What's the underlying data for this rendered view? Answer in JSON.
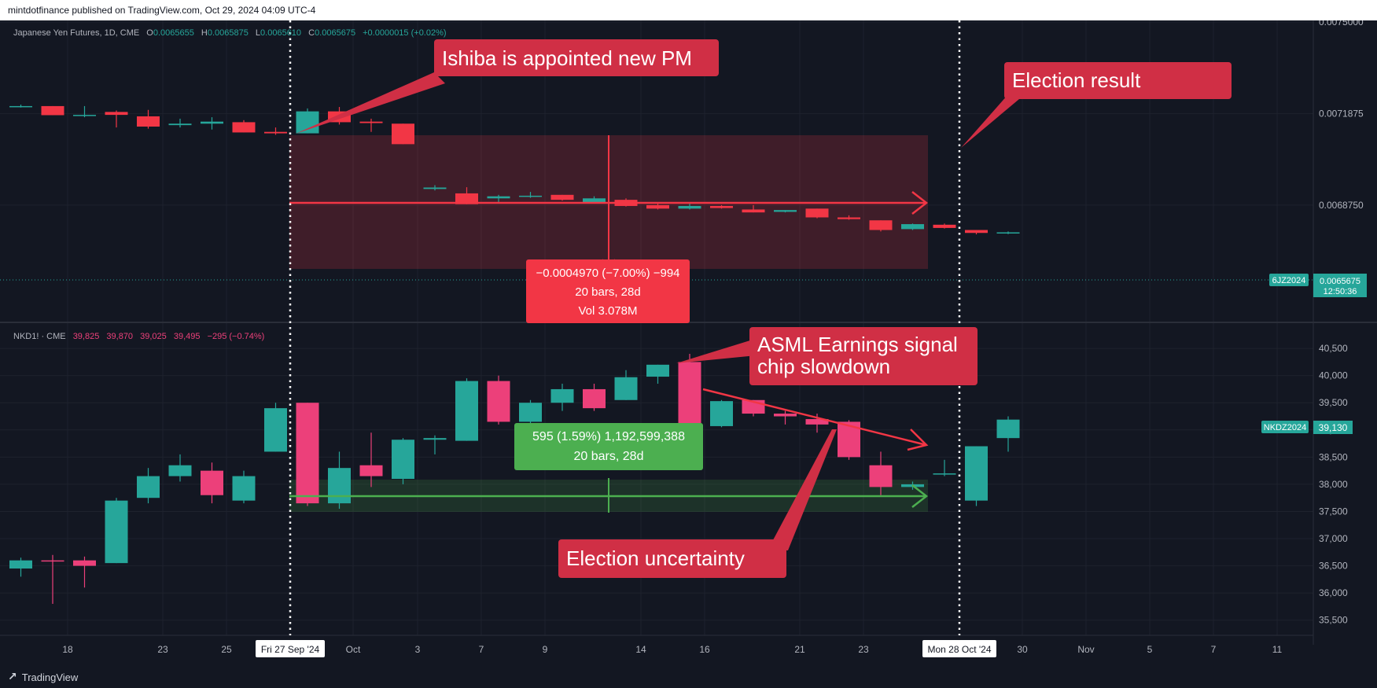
{
  "publisher_line": "mintdotfinance published on TradingView.com, Oct 29, 2024 04:09 UTC-4",
  "footer_logo_text": "TradingView",
  "colors": {
    "up": "#26a69a",
    "down_top": "#f23645",
    "down_bottom": "#ec407a",
    "bg": "#131722",
    "text": "#b2b5be"
  },
  "chart_data": [
    {
      "type": "candlestick",
      "title": "Japanese Yen Futures, 1D, CME",
      "ohlc_label": {
        "o_key": "O",
        "o": "0.0065655",
        "h_key": "H",
        "h": "0.0065875",
        "l_key": "L",
        "l": "0.0065610",
        "c_key": "C",
        "c": "0.0065675",
        "chg": "+0.0000015 (+0.02%)"
      },
      "y_ticks": [
        "0.0075000",
        "0.0071875",
        "0.0068750"
      ],
      "ylim": [
        0.00648,
        0.0075
      ],
      "symbol_badge": "6JZ2024",
      "last_price": "0.0065675",
      "countdown": "12:50:36",
      "last_value": 0.0065675,
      "candles": [
        {
          "o": 0.007213,
          "h": 0.007218,
          "l": 0.007208,
          "c": 0.007213
        },
        {
          "o": 0.007213,
          "h": 0.007213,
          "l": 0.007182,
          "c": 0.007182
        },
        {
          "o": 0.007183,
          "h": 0.007213,
          "l": 0.007175,
          "c": 0.007183
        },
        {
          "o": 0.007193,
          "h": 0.007198,
          "l": 0.00714,
          "c": 0.007183
        },
        {
          "o": 0.007178,
          "h": 0.0072,
          "l": 0.007136,
          "c": 0.007143
        },
        {
          "o": 0.007148,
          "h": 0.00717,
          "l": 0.00714,
          "c": 0.007153
        },
        {
          "o": 0.007153,
          "h": 0.007175,
          "l": 0.007133,
          "c": 0.00716
        },
        {
          "o": 0.007158,
          "h": 0.007165,
          "l": 0.007123,
          "c": 0.007123
        },
        {
          "o": 0.007125,
          "h": 0.00714,
          "l": 0.007115,
          "c": 0.00712
        },
        {
          "o": 0.00712,
          "h": 0.007205,
          "l": 0.00712,
          "c": 0.007195
        },
        {
          "o": 0.007195,
          "h": 0.00721,
          "l": 0.00715,
          "c": 0.007158
        },
        {
          "o": 0.00716,
          "h": 0.00717,
          "l": 0.007125,
          "c": 0.007155
        },
        {
          "o": 0.007153,
          "h": 0.007153,
          "l": 0.007083,
          "c": 0.007083
        },
        {
          "o": 0.00693,
          "h": 0.006943,
          "l": 0.006925,
          "c": 0.006935
        },
        {
          "o": 0.006915,
          "h": 0.006936,
          "l": 0.006878,
          "c": 0.006878
        },
        {
          "o": 0.006898,
          "h": 0.00691,
          "l": 0.00688,
          "c": 0.006905
        },
        {
          "o": 0.006905,
          "h": 0.00692,
          "l": 0.0069,
          "c": 0.006907
        },
        {
          "o": 0.00691,
          "h": 0.00691,
          "l": 0.00689,
          "c": 0.006893
        },
        {
          "o": 0.006885,
          "h": 0.006905,
          "l": 0.00688,
          "c": 0.006898
        },
        {
          "o": 0.006893,
          "h": 0.006898,
          "l": 0.00687,
          "c": 0.006872
        },
        {
          "o": 0.006875,
          "h": 0.00688,
          "l": 0.00686,
          "c": 0.006863
        },
        {
          "o": 0.006863,
          "h": 0.006885,
          "l": 0.00686,
          "c": 0.006872
        },
        {
          "o": 0.006872,
          "h": 0.006875,
          "l": 0.006863,
          "c": 0.006865
        },
        {
          "o": 0.00686,
          "h": 0.006875,
          "l": 0.00685,
          "c": 0.00685
        },
        {
          "o": 0.006852,
          "h": 0.006858,
          "l": 0.00685,
          "c": 0.006858
        },
        {
          "o": 0.006863,
          "h": 0.006863,
          "l": 0.00683,
          "c": 0.006833
        },
        {
          "o": 0.006833,
          "h": 0.00684,
          "l": 0.006825,
          "c": 0.006827
        },
        {
          "o": 0.006823,
          "h": 0.006823,
          "l": 0.006785,
          "c": 0.00679
        },
        {
          "o": 0.006793,
          "h": 0.006812,
          "l": 0.00679,
          "c": 0.00681
        },
        {
          "o": 0.006808,
          "h": 0.006812,
          "l": 0.006795,
          "c": 0.006797
        },
        {
          "o": 0.00679,
          "h": 0.00679,
          "l": 0.006775,
          "c": 0.00678
        },
        {
          "o": 0.006778,
          "h": 0.006785,
          "l": 0.006776,
          "c": 0.006782
        }
      ],
      "annotations": {
        "callout_1": "Ishiba is appointed new PM",
        "callout_2": "Election result",
        "measure_line1": "−0.0004970 (−7.00%) −994",
        "measure_line2": "20 bars, 28d",
        "measure_line3": "Vol 3.078M"
      }
    },
    {
      "type": "candlestick",
      "title": "NKD1! · CME",
      "ohlc_label": {
        "o": "39,825",
        "h": "39,870",
        "l": "39,025",
        "c": "39,495",
        "chg": "−295 (−0.74%)"
      },
      "y_ticks": [
        "40,500",
        "40,000",
        "39,500",
        "39,000",
        "38,500",
        "38,000",
        "37,500",
        "37,000",
        "36,500",
        "36,000",
        "35,500"
      ],
      "ylim": [
        35250,
        40950
      ],
      "symbol_badge": "NKDZ2024",
      "last_price": "39,130",
      "candles": [
        {
          "o": 36450,
          "h": 36650,
          "l": 36300,
          "c": 36600
        },
        {
          "o": 36600,
          "h": 36700,
          "l": 35800,
          "c": 36580
        },
        {
          "o": 36600,
          "h": 36670,
          "l": 36100,
          "c": 36500
        },
        {
          "o": 36550,
          "h": 37750,
          "l": 36550,
          "c": 37700
        },
        {
          "o": 37750,
          "h": 38300,
          "l": 37650,
          "c": 38150
        },
        {
          "o": 38150,
          "h": 38550,
          "l": 38050,
          "c": 38350
        },
        {
          "o": 38250,
          "h": 38400,
          "l": 37650,
          "c": 37800
        },
        {
          "o": 37700,
          "h": 38250,
          "l": 37650,
          "c": 38150
        },
        {
          "o": 38600,
          "h": 39500,
          "l": 38600,
          "c": 39400
        },
        {
          "o": 39500,
          "h": 39500,
          "l": 37600,
          "c": 37650
        },
        {
          "o": 37650,
          "h": 38600,
          "l": 37550,
          "c": 38300
        },
        {
          "o": 38350,
          "h": 38950,
          "l": 37950,
          "c": 38150
        },
        {
          "o": 38100,
          "h": 38850,
          "l": 38000,
          "c": 38820
        },
        {
          "o": 38820,
          "h": 38900,
          "l": 38550,
          "c": 38850
        },
        {
          "o": 38800,
          "h": 39950,
          "l": 38800,
          "c": 39900
        },
        {
          "o": 39900,
          "h": 40000,
          "l": 39100,
          "c": 39150
        },
        {
          "o": 39150,
          "h": 39550,
          "l": 39050,
          "c": 39500
        },
        {
          "o": 39500,
          "h": 39850,
          "l": 39350,
          "c": 39750
        },
        {
          "o": 39750,
          "h": 39850,
          "l": 39350,
          "c": 39400
        },
        {
          "o": 39550,
          "h": 40100,
          "l": 39550,
          "c": 39970
        },
        {
          "o": 39980,
          "h": 40200,
          "l": 39850,
          "c": 40200
        },
        {
          "o": 40250,
          "h": 40400,
          "l": 39050,
          "c": 39100
        },
        {
          "o": 39070,
          "h": 39550,
          "l": 39050,
          "c": 39530
        },
        {
          "o": 39550,
          "h": 39550,
          "l": 39250,
          "c": 39300
        },
        {
          "o": 39300,
          "h": 39350,
          "l": 39100,
          "c": 39250
        },
        {
          "o": 39200,
          "h": 39300,
          "l": 38950,
          "c": 39100
        },
        {
          "o": 39150,
          "h": 39180,
          "l": 38450,
          "c": 38500
        },
        {
          "o": 38350,
          "h": 38600,
          "l": 37800,
          "c": 37950
        },
        {
          "o": 37950,
          "h": 38050,
          "l": 37900,
          "c": 38000
        },
        {
          "o": 38200,
          "h": 38450,
          "l": 38150,
          "c": 38200
        },
        {
          "o": 37700,
          "h": 38700,
          "l": 37600,
          "c": 38700
        },
        {
          "o": 38850,
          "h": 39250,
          "l": 38600,
          "c": 39190
        }
      ],
      "annotations": {
        "callout_1_line1": "ASML Earnings signal",
        "callout_1_line2": "chip slowdown",
        "callout_2": "Election uncertainty",
        "measure_line1": "595 (1.59%) 1,192,599,388",
        "measure_line2": "20 bars, 28d"
      }
    }
  ],
  "x_axis": {
    "labels": [
      "18",
      "23",
      "25",
      "Oct",
      "3",
      "7",
      "9",
      "14",
      "16",
      "21",
      "23",
      "30",
      "Nov",
      "5",
      "7",
      "11"
    ],
    "marker_start": "Fri 27 Sep '24",
    "marker_end": "Mon 28 Oct '24"
  }
}
